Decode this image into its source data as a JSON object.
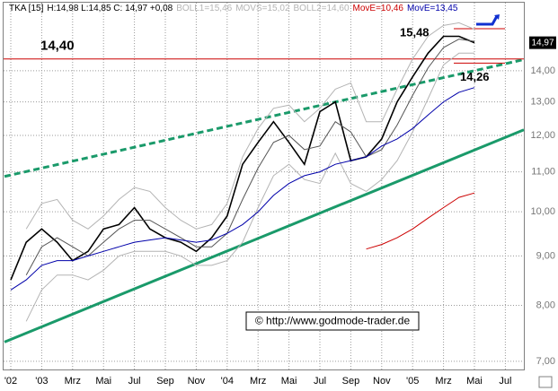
{
  "chart_data": {
    "type": "line",
    "quote": "H:14,98 L:14,85 C: 14,97 +0,08",
    "log_scale": true,
    "grid": true,
    "categories": [
      "'02",
      null,
      "'03",
      null,
      "Mrz",
      null,
      "Mai",
      null,
      "Jul",
      null,
      "Sep",
      null,
      "Nov",
      null,
      "'04",
      null,
      "Mrz",
      null,
      "Mai",
      null,
      "Jul",
      null,
      "Sep",
      null,
      "Nov",
      null,
      "'05",
      null,
      "Mrz",
      null,
      "Mai",
      null,
      "Jul",
      null
    ],
    "series": [
      {
        "name": "TKA [15]",
        "color": "#000000",
        "values": [
          8.5,
          9.3,
          9.6,
          9.3,
          8.9,
          9.1,
          9.6,
          9.7,
          10.1,
          9.6,
          9.4,
          9.3,
          9.1,
          9.4,
          9.9,
          11.2,
          11.8,
          12.4,
          11.8,
          11.2,
          12.7,
          13.0,
          11.3,
          11.4,
          11.9,
          13.0,
          13.8,
          14.6,
          15.2,
          15.2,
          14.97,
          null,
          null,
          null
        ]
      },
      {
        "name": "BOLL1=15,46",
        "color": "#b4b4b4",
        "values": [
          null,
          9.6,
          10.2,
          10.3,
          9.8,
          9.6,
          9.9,
          10.3,
          10.6,
          10.5,
          10.1,
          9.8,
          9.6,
          9.7,
          10.2,
          11.4,
          12.2,
          12.8,
          12.9,
          12.4,
          12.8,
          13.4,
          13.6,
          12.4,
          12.4,
          13.4,
          14.4,
          15.2,
          15.6,
          15.7,
          15.46,
          null,
          null,
          null
        ]
      },
      {
        "name": "MOVS=15,02",
        "color": "#555555",
        "values": [
          null,
          8.6,
          9.2,
          9.4,
          9.2,
          9.0,
          9.3,
          9.6,
          9.8,
          9.8,
          9.6,
          9.4,
          9.2,
          9.2,
          9.5,
          10.3,
          11.1,
          11.8,
          12.0,
          11.6,
          11.7,
          12.4,
          12.1,
          11.4,
          11.6,
          12.3,
          13.2,
          14.1,
          14.8,
          15.1,
          15.02,
          null,
          null,
          null
        ]
      },
      {
        "name": "BOLL2=14,60",
        "color": "#b4b4b4",
        "values": [
          null,
          7.7,
          8.3,
          8.6,
          8.6,
          8.5,
          8.7,
          9.0,
          9.1,
          9.1,
          9.1,
          9.0,
          8.8,
          8.8,
          8.9,
          9.3,
          10.1,
          10.9,
          11.2,
          10.8,
          10.7,
          11.5,
          10.7,
          10.5,
          10.8,
          11.3,
          12.1,
          13.1,
          14.2,
          14.6,
          14.6,
          null,
          null,
          null
        ]
      },
      {
        "name": "MovE=10,46",
        "color": "#cc0000",
        "values": [
          null,
          null,
          null,
          null,
          null,
          null,
          null,
          null,
          null,
          null,
          null,
          null,
          null,
          null,
          null,
          null,
          null,
          null,
          null,
          null,
          null,
          null,
          null,
          9.15,
          9.25,
          9.4,
          9.6,
          9.85,
          10.1,
          10.35,
          10.46,
          null,
          null,
          null
        ]
      },
      {
        "name": "MovE=13,45",
        "color": "#0000aa",
        "values": [
          8.3,
          8.5,
          8.8,
          8.9,
          8.9,
          9.0,
          9.1,
          9.2,
          9.3,
          9.35,
          9.4,
          9.35,
          9.3,
          9.35,
          9.5,
          9.7,
          10.0,
          10.4,
          10.7,
          10.9,
          11.0,
          11.2,
          11.3,
          11.4,
          11.7,
          11.9,
          12.2,
          12.6,
          13.0,
          13.3,
          13.45,
          null,
          null,
          null
        ]
      }
    ],
    "ylim": [
      6.85,
      16.47
    ],
    "yticks": [
      {
        "value": 7,
        "label": "7,00"
      },
      {
        "value": 8,
        "label": "8,00"
      },
      {
        "value": 9,
        "label": "9,00"
      },
      {
        "value": 10,
        "label": "10,00"
      },
      {
        "value": 11,
        "label": "11,00"
      },
      {
        "value": 12,
        "label": "12,00"
      },
      {
        "value": 13,
        "label": "13,00"
      },
      {
        "value": 14,
        "label": "14,00"
      }
    ],
    "last_price": {
      "value": 14.97,
      "label": "14,97"
    },
    "trend_lines": [
      {
        "style": "dashed",
        "color": "#1a9a6a",
        "values": [
          10.88,
          14.38
        ]
      },
      {
        "style": "solid",
        "color": "#1a9a6a",
        "values": [
          7.33,
          12.16
        ]
      }
    ],
    "levels": [
      {
        "value": 14.4,
        "label": "14,40",
        "extent": "full"
      },
      {
        "value": 15.48,
        "label": "15,48",
        "extent": "recent"
      },
      {
        "value": 14.26,
        "label": "14,26",
        "extent": "recent"
      }
    ],
    "watermark": "© http://www.godmode-trader.de"
  }
}
